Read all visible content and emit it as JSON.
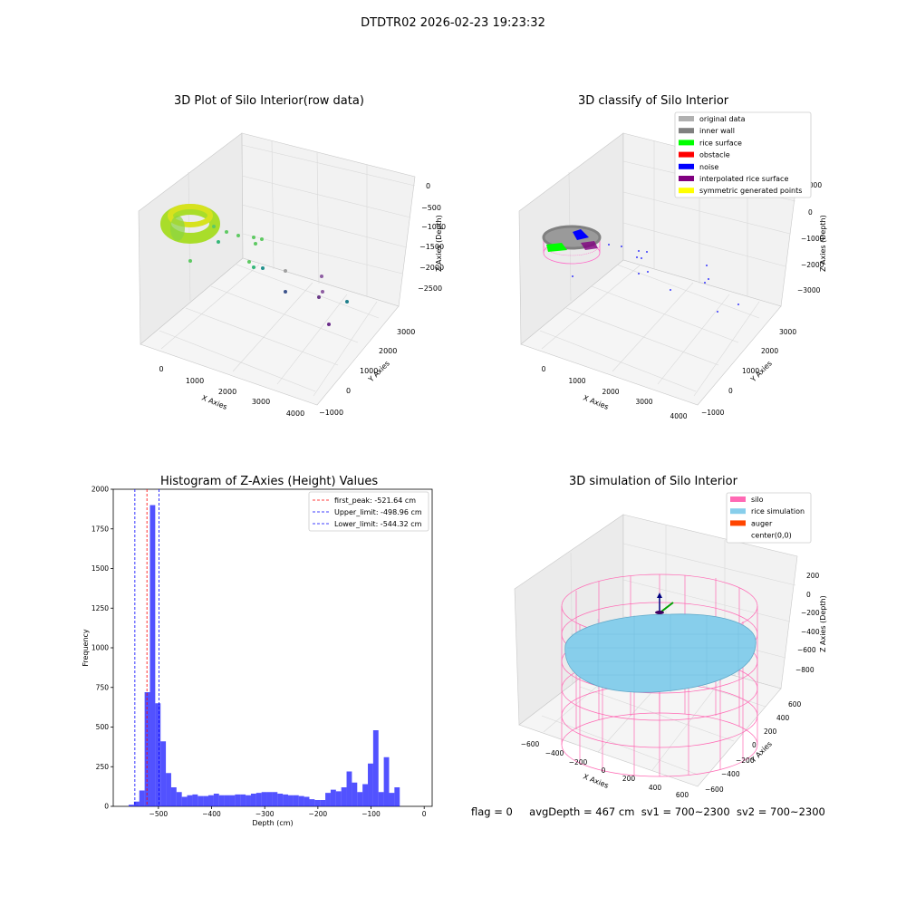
{
  "suptitle": "DTDTR02 2026-02-23 19:23:32",
  "footer": {
    "flag": "flag = 0",
    "avg": "avgDepth = 467 cm",
    "sv1": "sv1 = 700~2300",
    "sv2": "sv2 = 700~2300"
  },
  "panel1": {
    "title": "3D Plot of Silo Interior(row data)",
    "xlabel": "X Axies",
    "ylabel": "Y Axies",
    "zlabel": "Z Axies (Depth)",
    "xticks": [
      "0",
      "1000",
      "2000",
      "3000",
      "4000"
    ],
    "yticks": [
      "−1000",
      "0",
      "1000",
      "2000",
      "3000"
    ],
    "zticks": [
      "0",
      "−500",
      "−1000",
      "−1500",
      "−2000",
      "−2500"
    ]
  },
  "panel2": {
    "title": "3D classify of Silo Interior",
    "xlabel": "X Axies",
    "ylabel": "Y Axies",
    "zlabel": "Z Axies (Depth)",
    "xticks": [
      "0",
      "1000",
      "2000",
      "3000",
      "4000"
    ],
    "yticks": [
      "−1000",
      "0",
      "1000",
      "2000",
      "3000"
    ],
    "zticks": [
      "1000",
      "0",
      "−1000",
      "−2000",
      "−3000"
    ],
    "legend": [
      {
        "label": "original data",
        "color": "#b0b0b0"
      },
      {
        "label": "inner wall",
        "color": "#808080"
      },
      {
        "label": "rice surface",
        "color": "#00ff00"
      },
      {
        "label": "obstacle",
        "color": "#ff0000"
      },
      {
        "label": "noise",
        "color": "#0000ff"
      },
      {
        "label": "interpolated rice surface",
        "color": "#800080"
      },
      {
        "label": "symmetric generated points",
        "color": "#ffff00"
      }
    ]
  },
  "panel4": {
    "title": "3D simulation of Silo Interior",
    "xlabel": "X Axies",
    "ylabel": "Y Axies",
    "zlabel": "Z Axies (Depth)",
    "xticks": [
      "−600",
      "−400",
      "−200",
      "0",
      "200",
      "400",
      "600"
    ],
    "yticks": [
      "−600",
      "−400",
      "−200",
      "0",
      "200",
      "400",
      "600"
    ],
    "zticks": [
      "200",
      "0",
      "−200",
      "−400",
      "−600",
      "−800"
    ],
    "legend": [
      {
        "label": "silo",
        "color": "#ff69b4"
      },
      {
        "label": "rice simulation",
        "color": "#87ceeb"
      },
      {
        "label": "auger",
        "color": "#ff4500"
      },
      {
        "label": "center(0,0)",
        "color": ""
      }
    ]
  },
  "chart_data": [
    {
      "type": "bar",
      "title": "Histogram of Z-Axies (Height) Values",
      "xlabel": "Depth (cm)",
      "ylabel": "Frequency",
      "xlim": [
        -585,
        15
      ],
      "ylim": [
        0,
        2000
      ],
      "xticks": [
        -500,
        -400,
        -300,
        -200,
        -100,
        0
      ],
      "xtick_labels": [
        "−500",
        "−400",
        "−300",
        "−200",
        "−100",
        "0"
      ],
      "yticks": [
        0,
        250,
        500,
        750,
        1000,
        1250,
        1500,
        1750,
        2000
      ],
      "bin_width": 10,
      "bin_starts": [
        -556,
        -546,
        -536,
        -526,
        -516,
        -506,
        -496,
        -486,
        -476,
        -466,
        -456,
        -446,
        -436,
        -426,
        -416,
        -406,
        -396,
        -386,
        -376,
        -366,
        -356,
        -346,
        -336,
        -326,
        -316,
        -306,
        -296,
        -286,
        -276,
        -266,
        -256,
        -246,
        -236,
        -226,
        -216,
        -206,
        -196,
        -186,
        -176,
        -166,
        -156,
        -146,
        -136,
        -126,
        -116,
        -106,
        -96,
        -86,
        -76,
        -66,
        -56,
        -46,
        -36,
        -26,
        -16,
        -6
      ],
      "values": [
        10,
        30,
        100,
        720,
        1900,
        650,
        410,
        210,
        120,
        90,
        60,
        70,
        75,
        65,
        65,
        70,
        80,
        70,
        70,
        70,
        75,
        75,
        70,
        80,
        85,
        90,
        90,
        90,
        80,
        75,
        70,
        70,
        65,
        60,
        45,
        40,
        40,
        85,
        105,
        95,
        120,
        220,
        150,
        90,
        140,
        270,
        480,
        90,
        310,
        85,
        120,
        0,
        0,
        0,
        0,
        0
      ],
      "series_name": "",
      "color": "#0000ff",
      "vlines": [
        {
          "label": "first_peak: -521.64 cm",
          "x": -521.64,
          "color": "#ff0000"
        },
        {
          "label": "Upper_limit: -498.96 cm",
          "x": -498.96,
          "color": "#0000ff"
        },
        {
          "label": "Lower_limit: -544.32 cm",
          "x": -544.32,
          "color": "#0000ff"
        }
      ],
      "legend_position": "upper right"
    }
  ]
}
